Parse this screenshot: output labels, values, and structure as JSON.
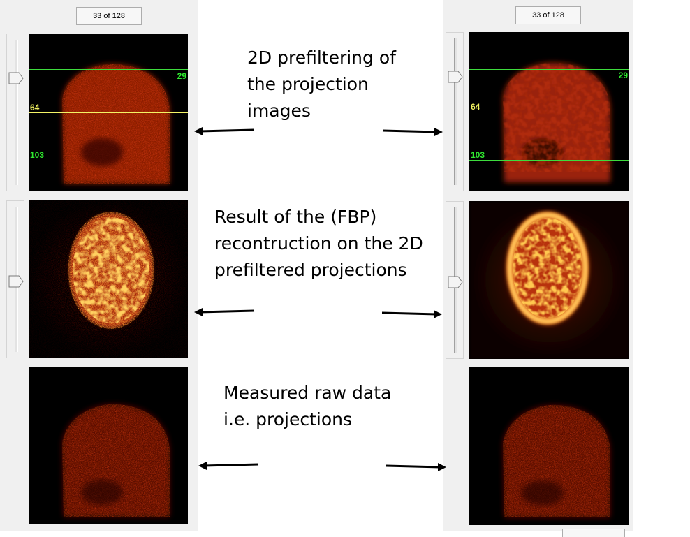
{
  "left_viewer": {
    "counter": "33 of 128",
    "slice_labels": {
      "top": "29",
      "middle": "64",
      "bottom": "103"
    }
  },
  "right_viewer": {
    "counter": "33 of 128",
    "slice_labels": {
      "top": "29",
      "middle": "64",
      "bottom": "103"
    }
  },
  "annotations": {
    "prefilter": [
      "2D prefiltering of",
      "the projection",
      "images"
    ],
    "reconstruction": [
      "Result of the (FBP)",
      "recontruction on the 2D",
      "prefiltered projections"
    ],
    "raw_data": [
      "Measured raw data",
      "i.e. projections"
    ]
  },
  "colors": {
    "panel_bg": "#f0f0f0",
    "slice_line_green": "#3ddc3d",
    "slice_line_yellow": "#f4f465",
    "image_hot_dark": "#5a0c04",
    "image_hot_mid": "#c8320a",
    "image_hot_bright": "#ffd060"
  }
}
